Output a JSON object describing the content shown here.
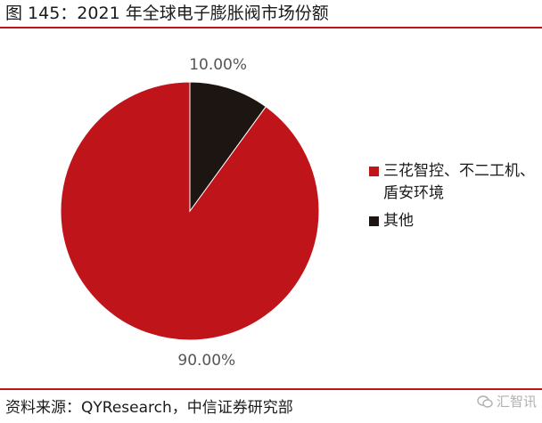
{
  "colors": {
    "accent": "#c0141b",
    "other": "#1c1512",
    "rule": "#c0141b"
  },
  "header": {
    "title": "图 145：2021 年全球电子膨胀阀市场份额"
  },
  "chart_data": {
    "type": "pie",
    "title": "",
    "slices": [
      {
        "label": "三花智控、不二工机、盾安环境",
        "value": 90.0,
        "display": "90.00%",
        "color": "#c0141b"
      },
      {
        "label": "其他",
        "value": 10.0,
        "display": "10.00%",
        "color": "#1c1512"
      }
    ],
    "start_angle_deg": 0,
    "direction": "counterclockwise",
    "legend": "right"
  },
  "footer": {
    "source": "资料来源：QYResearch，中信证券研究部",
    "watermark": "汇智讯",
    "watermark_icon": "wechat-icon"
  }
}
